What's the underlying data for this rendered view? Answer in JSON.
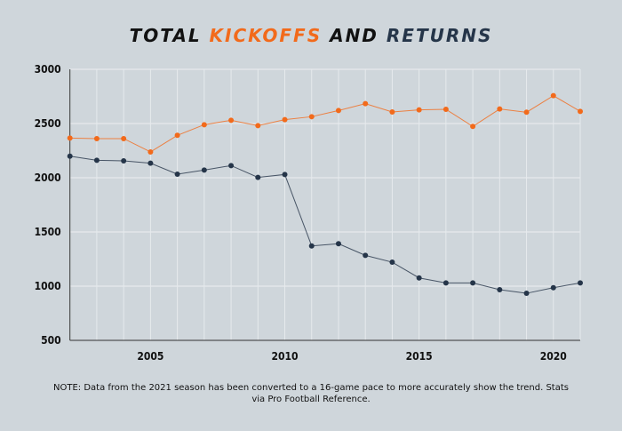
{
  "chart_data": {
    "type": "line",
    "title": {
      "parts": [
        {
          "text": "TOTAL ",
          "color": "#111111"
        },
        {
          "text": "KICKOFFS",
          "color": "#f26a1b"
        },
        {
          "text": " AND ",
          "color": "#111111"
        },
        {
          "text": "RETURNS",
          "color": "#253549"
        }
      ]
    },
    "x": [
      2002,
      2003,
      2004,
      2005,
      2006,
      2007,
      2008,
      2009,
      2010,
      2011,
      2012,
      2013,
      2014,
      2015,
      2016,
      2017,
      2018,
      2019,
      2020,
      2021
    ],
    "series": [
      {
        "color": "#f26a1b",
        "values": [
          2366,
          2361,
          2361,
          2238,
          2391,
          2489,
          2530,
          2481,
          2536,
          2563,
          2620,
          2683,
          2607,
          2626,
          2631,
          2473,
          2634,
          2604,
          2757,
          2612
        ]
      },
      {
        "color": "#253549",
        "values": [
          2199,
          2161,
          2156,
          2134,
          2033,
          2071,
          2112,
          2003,
          2030,
          1371,
          1391,
          1284,
          1221,
          1076,
          1030,
          1030,
          967,
          934,
          986,
          1030
        ]
      }
    ],
    "xlim": [
      2002,
      2021
    ],
    "ylim": [
      500,
      3000
    ],
    "xticks": [
      "2005",
      "2010",
      "2015",
      "2020"
    ],
    "yticks": [
      "500",
      "1000",
      "1500",
      "2000",
      "2500",
      "3000"
    ],
    "grid": true,
    "xlabel": "",
    "ylabel": ""
  },
  "note": "NOTE: Data from the 2021 season has been converted to a 16-game pace to more accurately show the trend. Stats via Pro Football Reference."
}
